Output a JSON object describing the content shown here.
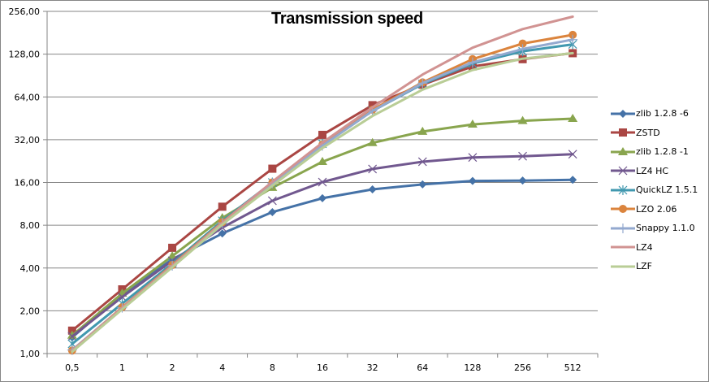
{
  "chart_data": {
    "type": "line",
    "title": "Transmission speed",
    "xlabel": "",
    "ylabel": "",
    "y_scale": "log2",
    "ylim": [
      1,
      256
    ],
    "y_ticks": [
      "1,00",
      "2,00",
      "4,00",
      "8,00",
      "16,00",
      "32,00",
      "64,00",
      "128,00",
      "256,00"
    ],
    "y_tick_values": [
      1,
      2,
      4,
      8,
      16,
      32,
      64,
      128,
      256
    ],
    "categories": [
      "0,5",
      "1",
      "2",
      "4",
      "8",
      "16",
      "32",
      "64",
      "128",
      "256",
      "512"
    ],
    "grid": "horizontal",
    "legend_position": "right",
    "series": [
      {
        "name": "zlib 1.2.8 -6",
        "color": "#4572A7",
        "marker": "diamond",
        "values": [
          1.3,
          2.6,
          4.6,
          7.0,
          9.9,
          12.4,
          14.3,
          15.5,
          16.4,
          16.5,
          16.7
        ]
      },
      {
        "name": "ZSTD",
        "color": "#AA4643",
        "marker": "square",
        "values": [
          1.45,
          2.83,
          5.55,
          10.8,
          20.0,
          34.6,
          56.0,
          78.0,
          105.0,
          118.0,
          130.0
        ]
      },
      {
        "name": "zlib 1.2.8 -1",
        "color": "#89A54E",
        "marker": "triangle",
        "values": [
          1.34,
          2.65,
          4.85,
          9.0,
          14.7,
          22.4,
          30.4,
          36.5,
          41.0,
          43.5,
          45.0
        ]
      },
      {
        "name": "LZ4 HC",
        "color": "#71588F",
        "marker": "x",
        "values": [
          1.32,
          2.5,
          4.5,
          7.7,
          11.9,
          16.1,
          19.9,
          22.4,
          24.0,
          24.5,
          25.3
        ]
      },
      {
        "name": "QuickLZ 1.5.1",
        "color": "#4198AF",
        "marker": "star",
        "values": [
          1.17,
          2.25,
          4.3,
          8.6,
          16.0,
          30.0,
          51.0,
          79.0,
          110.0,
          134.0,
          150.0
        ]
      },
      {
        "name": "LZO 2.06",
        "color": "#DB843D",
        "marker": "circle",
        "values": [
          1.05,
          2.12,
          4.2,
          8.4,
          16.0,
          29.5,
          52.0,
          81.0,
          118.0,
          152.0,
          175.0
        ]
      },
      {
        "name": "Snappy 1.1.0",
        "color": "#93A9CF",
        "marker": "plus",
        "values": [
          1.06,
          2.1,
          4.15,
          8.3,
          15.8,
          29.0,
          51.0,
          80.0,
          112.0,
          139.0,
          162.0
        ]
      },
      {
        "name": "LZ4",
        "color": "#D19392",
        "marker": "none",
        "values": [
          1.05,
          2.1,
          4.15,
          8.3,
          16.2,
          30.5,
          54.0,
          92.0,
          142.0,
          192.0,
          235.0
        ]
      },
      {
        "name": "LZF",
        "color": "#B9CD96",
        "marker": "none",
        "values": [
          1.03,
          2.05,
          4.05,
          8.1,
          15.2,
          28.0,
          47.0,
          72.0,
          99.0,
          119.0,
          130.0
        ]
      }
    ]
  }
}
